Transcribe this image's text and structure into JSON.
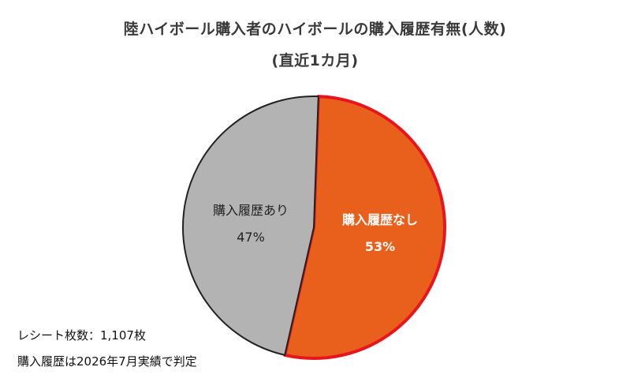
{
  "title": {
    "line1": "陸ハイボール購入者のハイボールの購入履歴有無(人数)",
    "line2": "(直近1カ月)"
  },
  "notes": {
    "receipt_count": "レシート枚数：1,107枚",
    "judgement": "購入履歴は2026年7月実績で判定"
  },
  "chart_data": {
    "type": "pie",
    "title": "陸ハイボール購入者のハイボールの購入履歴有無(人数) (直近1カ月)",
    "slices": [
      {
        "label": "購入履歴なし",
        "value": 53,
        "value_label": "53%",
        "color": "#e8601c",
        "edge": "#e8161c",
        "text_color": "#ffffff"
      },
      {
        "label": "購入履歴あり",
        "value": 47,
        "value_label": "47%",
        "color": "#b3b3b3",
        "edge": "#222222",
        "text_color": "#222222"
      }
    ]
  }
}
